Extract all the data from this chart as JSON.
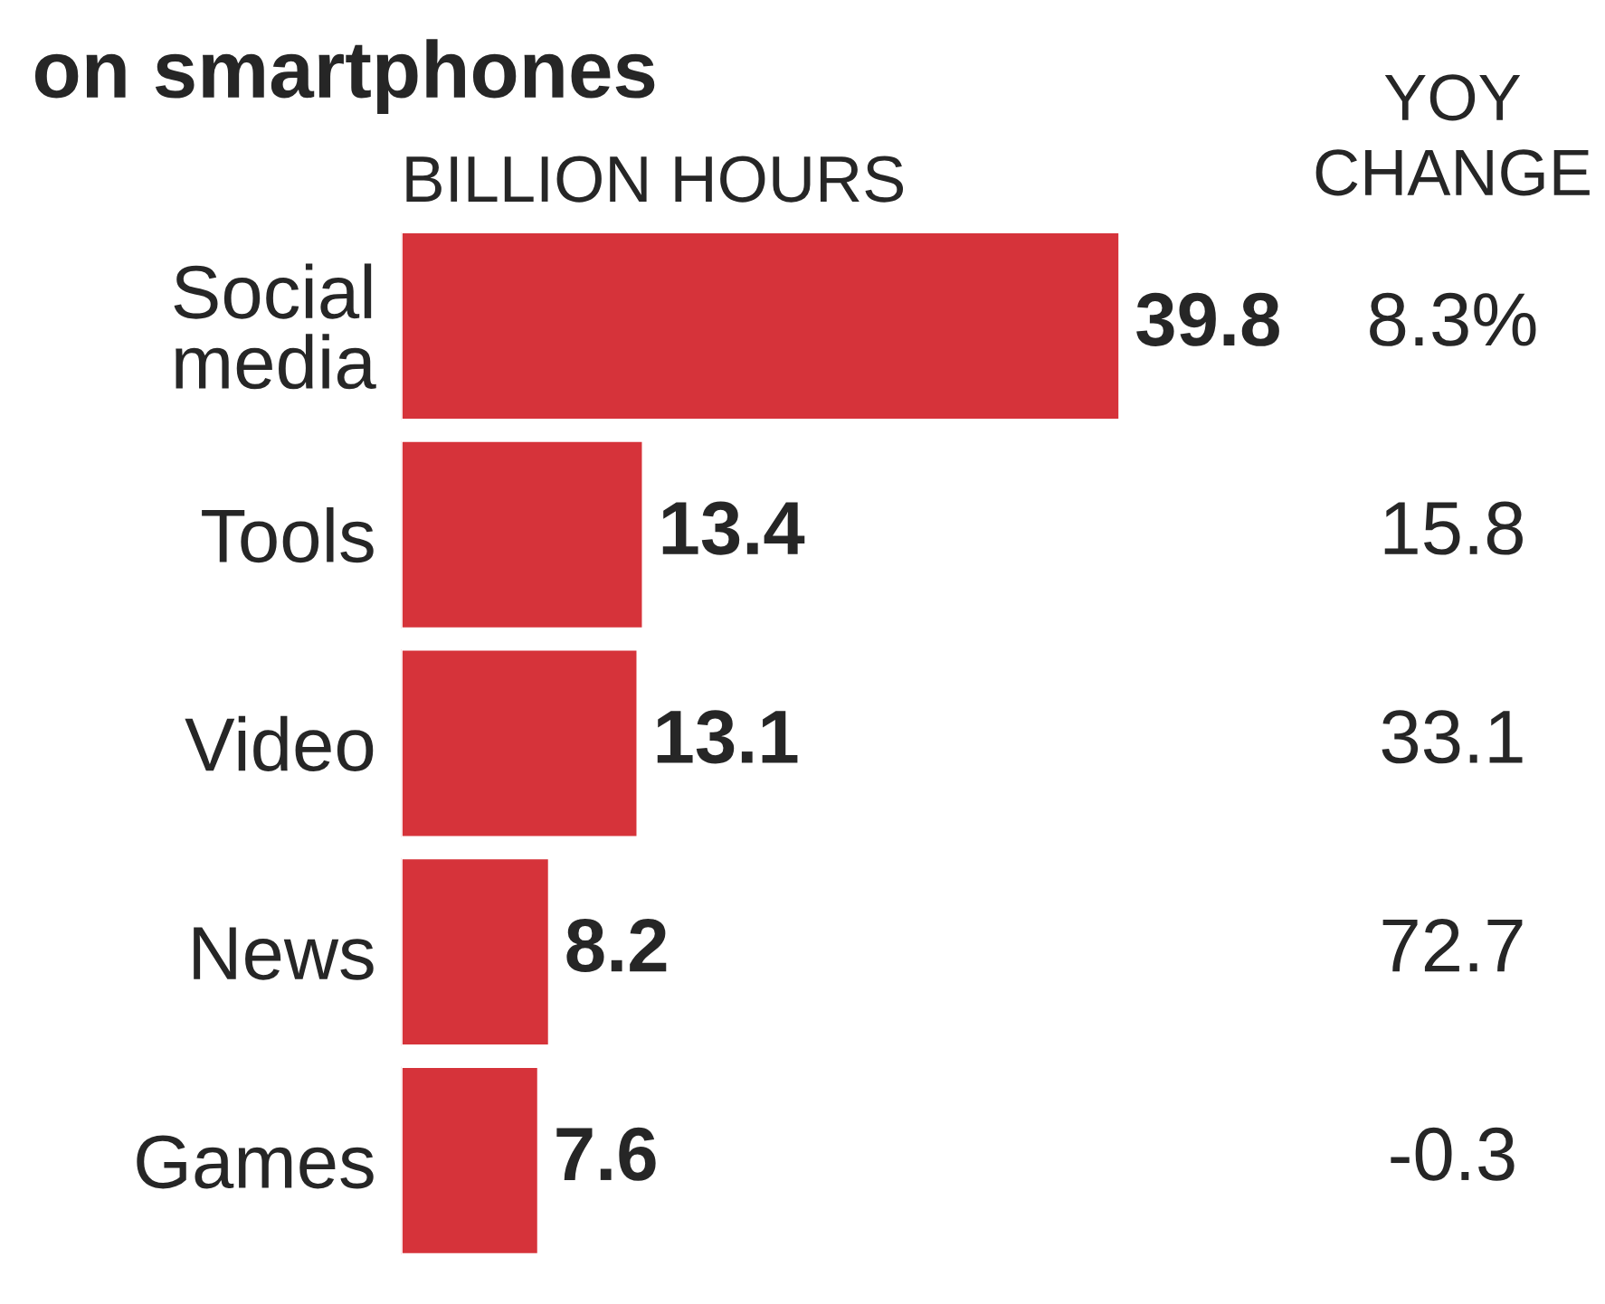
{
  "chart_data": {
    "type": "bar",
    "orientation": "horizontal",
    "title": "on smartphones",
    "xlabel": "BILLION HOURS",
    "categories": [
      "Social\nmedia",
      "Tools",
      "Video",
      "News",
      "Games"
    ],
    "values": [
      39.8,
      13.4,
      13.1,
      8.2,
      7.6
    ],
    "color": "#d6333a",
    "data_labels": true,
    "tick_labels": "y",
    "grid": false,
    "legend": false,
    "annotations": [
      {
        "text": "YOY\nCHANGE"
      },
      "8.3%",
      "15.8",
      "33.1",
      "72.7",
      "-0.3"
    ]
  }
}
